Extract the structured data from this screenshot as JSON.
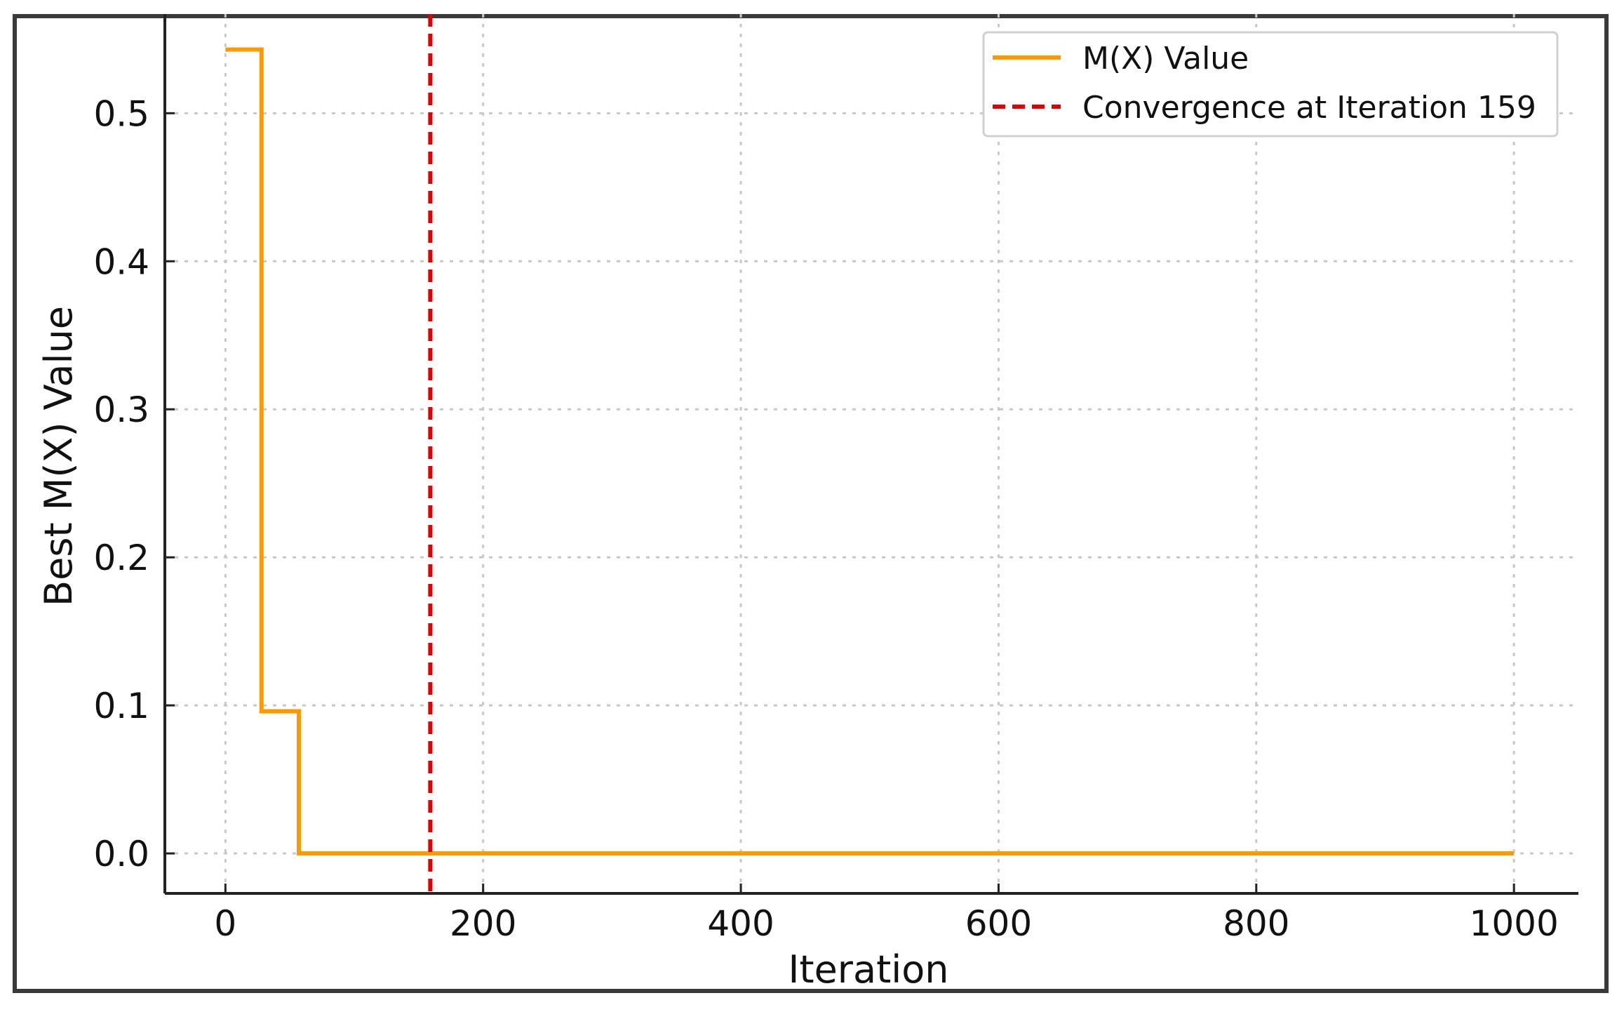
{
  "chart_data": {
    "type": "line",
    "xlabel": "Iteration",
    "ylabel": "Best M(X) Value",
    "xlim": [
      -47,
      1050
    ],
    "ylim": [
      -0.027,
      0.567
    ],
    "xticks": [
      0,
      200,
      400,
      600,
      800,
      1000
    ],
    "yticks": [
      0.0,
      0.1,
      0.2,
      0.3,
      0.4,
      0.5
    ],
    "x_tick_labels": [
      "0",
      "200",
      "400",
      "600",
      "800",
      "1000"
    ],
    "y_tick_labels": [
      "0.0",
      "0.1",
      "0.2",
      "0.3",
      "0.4",
      "0.5"
    ],
    "grid": true,
    "legend_position": "top-right",
    "series": [
      {
        "name": "M(X) Value",
        "color": "#FF9900",
        "style": "step",
        "x": [
          0,
          28,
          28,
          57,
          57,
          1000
        ],
        "y": [
          0.543,
          0.543,
          0.096,
          0.096,
          0.0,
          0.0
        ]
      }
    ],
    "vlines": [
      {
        "name": "Convergence at Iteration 159",
        "x": 159,
        "color": "#E00000",
        "style": "dashed"
      }
    ]
  }
}
